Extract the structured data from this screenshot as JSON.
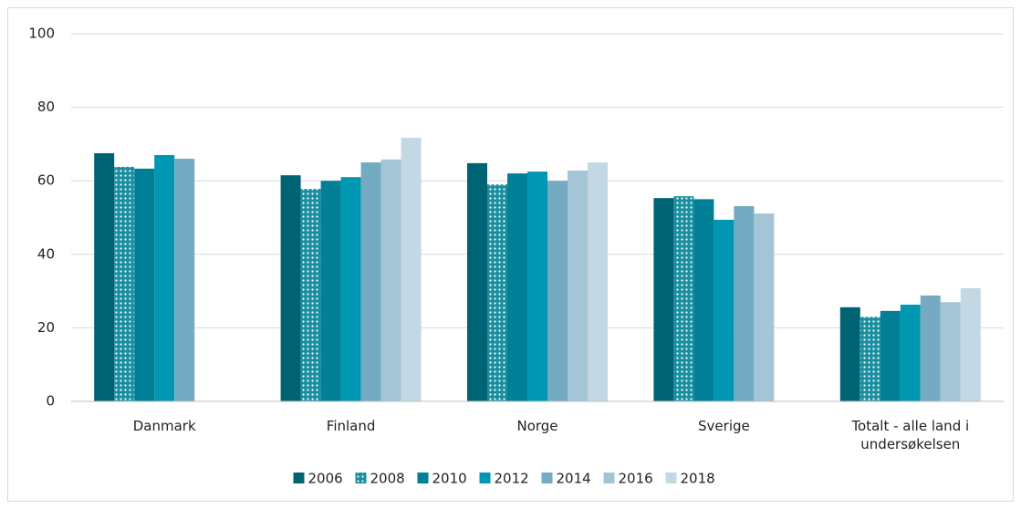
{
  "chart_data": {
    "type": "bar",
    "categories": [
      "Danmark",
      "Finland",
      "Norge",
      "Sverige",
      "Totalt - alle land i undersøkelsen"
    ],
    "series": [
      {
        "name": "2006",
        "color": "#006373",
        "values": [
          67.5,
          61.5,
          64.8,
          55.3,
          25.6
        ]
      },
      {
        "name": "2008",
        "color": "#1a8fa0",
        "pattern": "dots",
        "values": [
          63.8,
          57.8,
          59,
          55.8,
          23
        ]
      },
      {
        "name": "2010",
        "color": "#007f96",
        "values": [
          63.3,
          60,
          62,
          55,
          24.6
        ]
      },
      {
        "name": "2012",
        "color": "#0097b2",
        "values": [
          67,
          61,
          62.5,
          49.4,
          26.3
        ]
      },
      {
        "name": "2014",
        "color": "#74abc2",
        "values": [
          66,
          65,
          60,
          53.1,
          28.8
        ]
      },
      {
        "name": "2016",
        "color": "#a3c5d6",
        "values": [
          null,
          65.8,
          62.8,
          51.1,
          27
        ]
      },
      {
        "name": "2018",
        "color": "#c4d8e3",
        "values": [
          null,
          71.7,
          65,
          null,
          30.8
        ]
      }
    ],
    "ylim": [
      0,
      100
    ],
    "yticks": [
      0,
      20,
      40,
      60,
      80,
      100
    ],
    "grid": true,
    "legend": "bottom"
  }
}
